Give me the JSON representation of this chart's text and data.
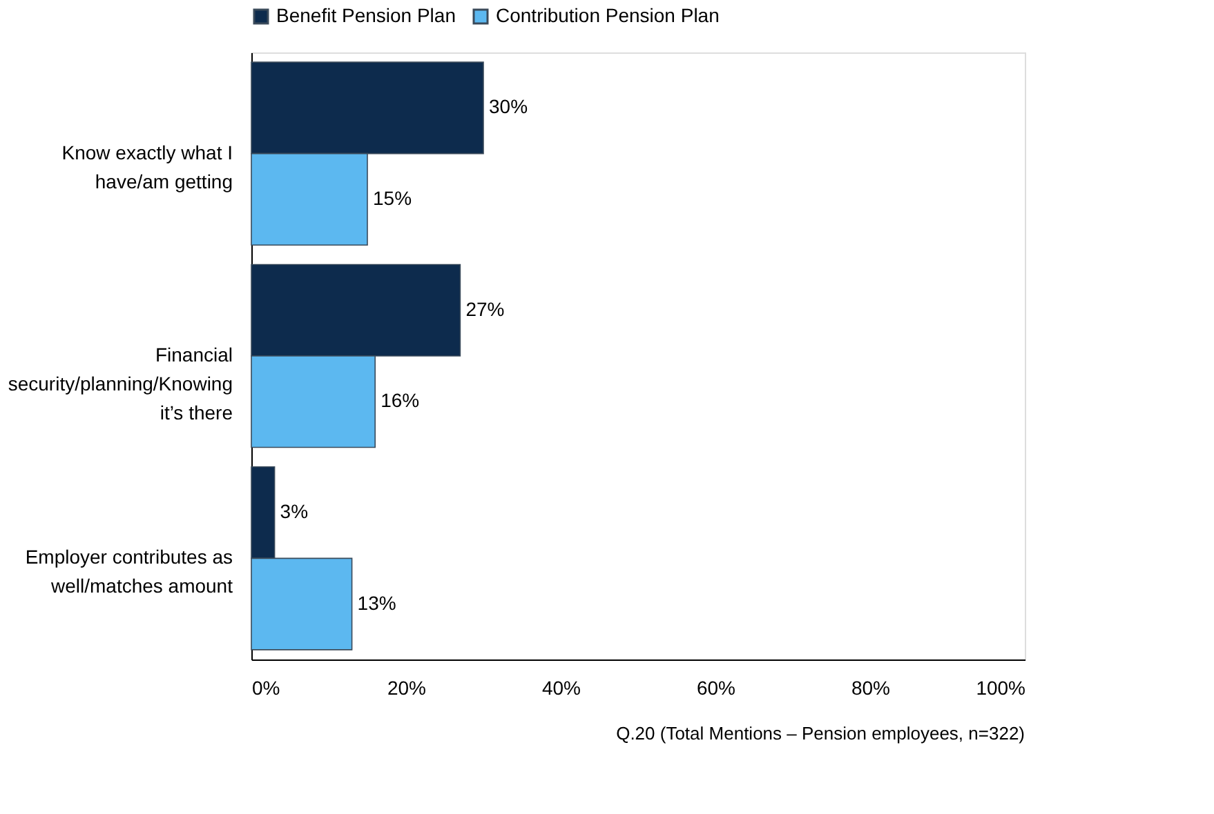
{
  "chart_data": {
    "type": "bar",
    "orientation": "horizontal",
    "categories": [
      "Know exactly what I have/am getting",
      "Financial security/planning/Knowing it’s there",
      "Employer contributes as well/matches amount"
    ],
    "series": [
      {
        "name": "Benefit Pension Plan",
        "color": "#0d2b4d",
        "values": [
          30,
          27,
          3
        ],
        "value_labels": [
          "30%",
          "27%",
          "3%"
        ]
      },
      {
        "name": "Contribution Pension Plan",
        "color": "#5cb8f0",
        "values": [
          15,
          16,
          13
        ],
        "value_labels": [
          "15%",
          "16%",
          "13%"
        ]
      }
    ],
    "xlim": [
      0,
      100
    ],
    "xticks": [
      {
        "value": 0,
        "label": "0%"
      },
      {
        "value": 20,
        "label": "20%"
      },
      {
        "value": 40,
        "label": "40%"
      },
      {
        "value": 60,
        "label": "60%"
      },
      {
        "value": 80,
        "label": "80%"
      },
      {
        "value": 100,
        "label": "100%"
      }
    ],
    "grid": false,
    "legend": "top",
    "annotations": [
      "Q.20 (Total Mentions – Pension employees, n=322)"
    ]
  }
}
